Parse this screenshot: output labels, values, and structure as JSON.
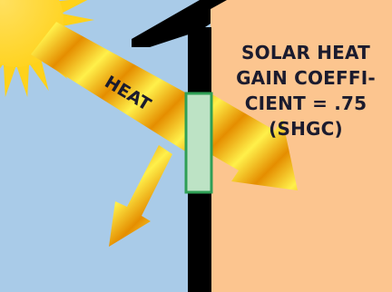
{
  "diagram": {
    "heat_label": "HEAT",
    "caption_lines": [
      "SOLAR HEAT",
      "GAIN COEFFI-",
      "CIENT = .75",
      "(SHGC)"
    ],
    "shgc_value": 0.75
  },
  "colors": {
    "sky": "#a9cbe8",
    "interior": "#fcc58f",
    "wall": "#000000",
    "window_glass": "#bde3c5",
    "window_frame": "#2f9f55",
    "sun": "#ffd21a",
    "sun_core": "#ffe060",
    "arrow_light": "#fff04a",
    "arrow_dark": "#e58e00",
    "text": "#1b1b2e"
  }
}
